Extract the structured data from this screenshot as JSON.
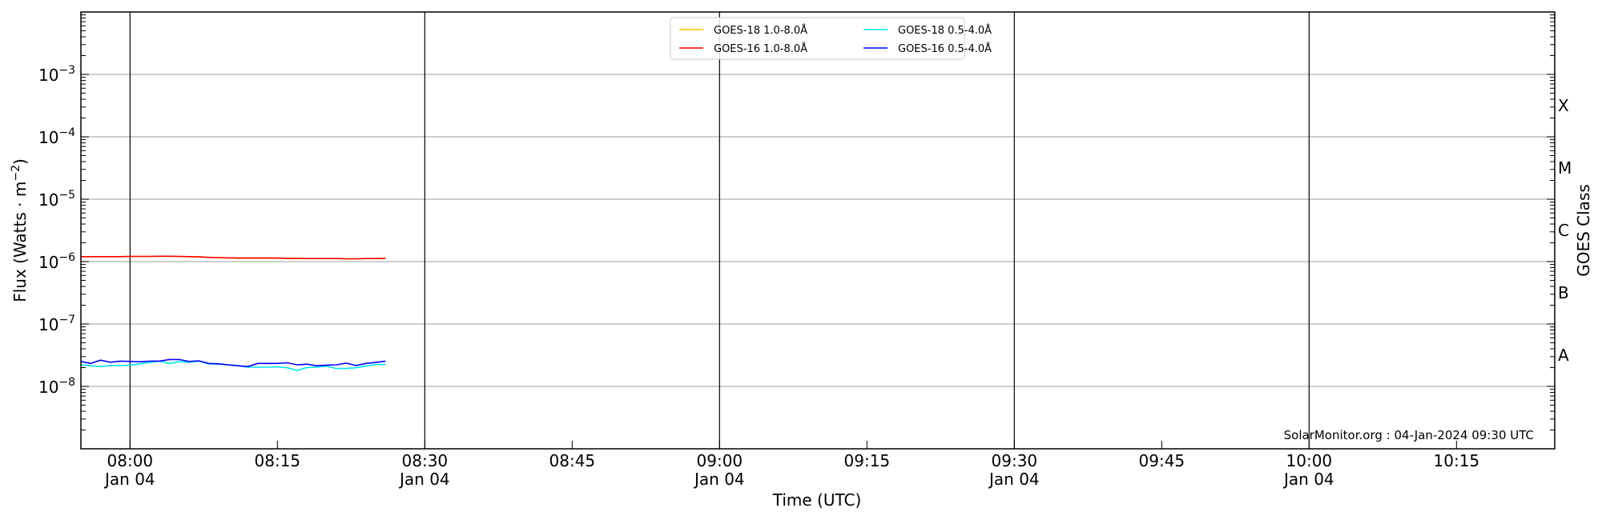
{
  "chart_data": {
    "type": "line",
    "xlabel": "Time (UTC)",
    "ylabel": "Flux (Watts · m",
    "ylabel_sup": "−2",
    "ylabel_close": ")",
    "y2label": "GOES Class",
    "yscale": "log",
    "ylim": [
      1e-09,
      0.01
    ],
    "xlim": [
      "07:55",
      "10:25"
    ],
    "grid": "horizontal gray at decades; vertical black every 30 min",
    "legend_placement": "top-center",
    "x_ticks": [
      {
        "t": "08:00",
        "label": "08:00",
        "sub": "Jan 04"
      },
      {
        "t": "08:15",
        "label": "08:15",
        "sub": ""
      },
      {
        "t": "08:30",
        "label": "08:30",
        "sub": "Jan 04"
      },
      {
        "t": "08:45",
        "label": "08:45",
        "sub": ""
      },
      {
        "t": "09:00",
        "label": "09:00",
        "sub": "Jan 04"
      },
      {
        "t": "09:15",
        "label": "09:15",
        "sub": ""
      },
      {
        "t": "09:30",
        "label": "09:30",
        "sub": "Jan 04"
      },
      {
        "t": "09:45",
        "label": "09:45",
        "sub": ""
      },
      {
        "t": "10:00",
        "label": "10:00",
        "sub": "Jan 04"
      },
      {
        "t": "10:15",
        "label": "10:15",
        "sub": ""
      }
    ],
    "y_ticks": [
      {
        "exp": -3,
        "label": "10",
        "sup": "−3"
      },
      {
        "exp": -4,
        "label": "10",
        "sup": "−4"
      },
      {
        "exp": -5,
        "label": "10",
        "sup": "−5"
      },
      {
        "exp": -6,
        "label": "10",
        "sup": "−6"
      },
      {
        "exp": -7,
        "label": "10",
        "sup": "−7"
      },
      {
        "exp": -8,
        "label": "10",
        "sup": "−8"
      }
    ],
    "goes_classes": [
      {
        "label": "A",
        "low": 1e-08
      },
      {
        "label": "B",
        "low": 1e-07
      },
      {
        "label": "C",
        "low": 1e-06
      },
      {
        "label": "M",
        "low": 1e-05
      },
      {
        "label": "X",
        "low": 0.0001
      }
    ],
    "x_start": "07:55",
    "x_step_minutes": 1,
    "series": [
      {
        "name": "GOES-18 1.0-8.0Å",
        "color": "#ffc000",
        "values": [
          1.2e-06,
          1.2e-06,
          1.2e-06,
          1.2e-06,
          1.2e-06,
          1.21e-06,
          1.21e-06,
          1.21e-06,
          1.22e-06,
          1.22e-06,
          1.21e-06,
          1.2e-06,
          1.19e-06,
          1.17e-06,
          1.16e-06,
          1.15e-06,
          1.14e-06,
          1.14e-06,
          1.14e-06,
          1.14e-06,
          1.14e-06,
          1.13e-06,
          1.13e-06,
          1.12e-06,
          1.12e-06,
          1.12e-06,
          1.12e-06,
          1.11e-06,
          1.11e-06,
          1.12e-06,
          1.12e-06,
          1.13e-06
        ]
      },
      {
        "name": "GOES-16 1.0-8.0Å",
        "color": "#ff0000",
        "values": [
          1.2e-06,
          1.2e-06,
          1.2e-06,
          1.2e-06,
          1.2e-06,
          1.21e-06,
          1.21e-06,
          1.21e-06,
          1.22e-06,
          1.22e-06,
          1.21e-06,
          1.2e-06,
          1.19e-06,
          1.17e-06,
          1.16e-06,
          1.15e-06,
          1.14e-06,
          1.14e-06,
          1.14e-06,
          1.14e-06,
          1.14e-06,
          1.13e-06,
          1.13e-06,
          1.12e-06,
          1.12e-06,
          1.12e-06,
          1.12e-06,
          1.11e-06,
          1.11e-06,
          1.12e-06,
          1.12e-06,
          1.13e-06
        ]
      },
      {
        "name": "GOES-18 0.5-4.0Å",
        "color": "#00e5ee",
        "values": [
          2.22e-08,
          2.14e-08,
          2.08e-08,
          2.16e-08,
          2.16e-08,
          2.19e-08,
          2.3e-08,
          2.42e-08,
          2.54e-08,
          2.33e-08,
          2.48e-08,
          2.44e-08,
          2.54e-08,
          2.3e-08,
          2.27e-08,
          2.22e-08,
          2.14e-08,
          2.03e-08,
          2.03e-08,
          2.03e-08,
          2.06e-08,
          1.99e-08,
          1.8e-08,
          2.01e-08,
          2.03e-08,
          2.11e-08,
          1.94e-08,
          1.94e-08,
          1.99e-08,
          2.11e-08,
          2.24e-08,
          2.24e-08
        ]
      },
      {
        "name": "GOES-16 0.5-4.0Å",
        "color": "#0000ff",
        "values": [
          2.51e-08,
          2.33e-08,
          2.63e-08,
          2.44e-08,
          2.54e-08,
          2.51e-08,
          2.48e-08,
          2.54e-08,
          2.54e-08,
          2.7e-08,
          2.7e-08,
          2.51e-08,
          2.57e-08,
          2.33e-08,
          2.3e-08,
          2.22e-08,
          2.14e-08,
          2.08e-08,
          2.33e-08,
          2.33e-08,
          2.33e-08,
          2.39e-08,
          2.22e-08,
          2.27e-08,
          2.14e-08,
          2.19e-08,
          2.22e-08,
          2.36e-08,
          2.16e-08,
          2.33e-08,
          2.42e-08,
          2.54e-08
        ]
      }
    ],
    "annotation": "SolarMonitor.org : 04-Jan-2024 09:30 UTC"
  }
}
